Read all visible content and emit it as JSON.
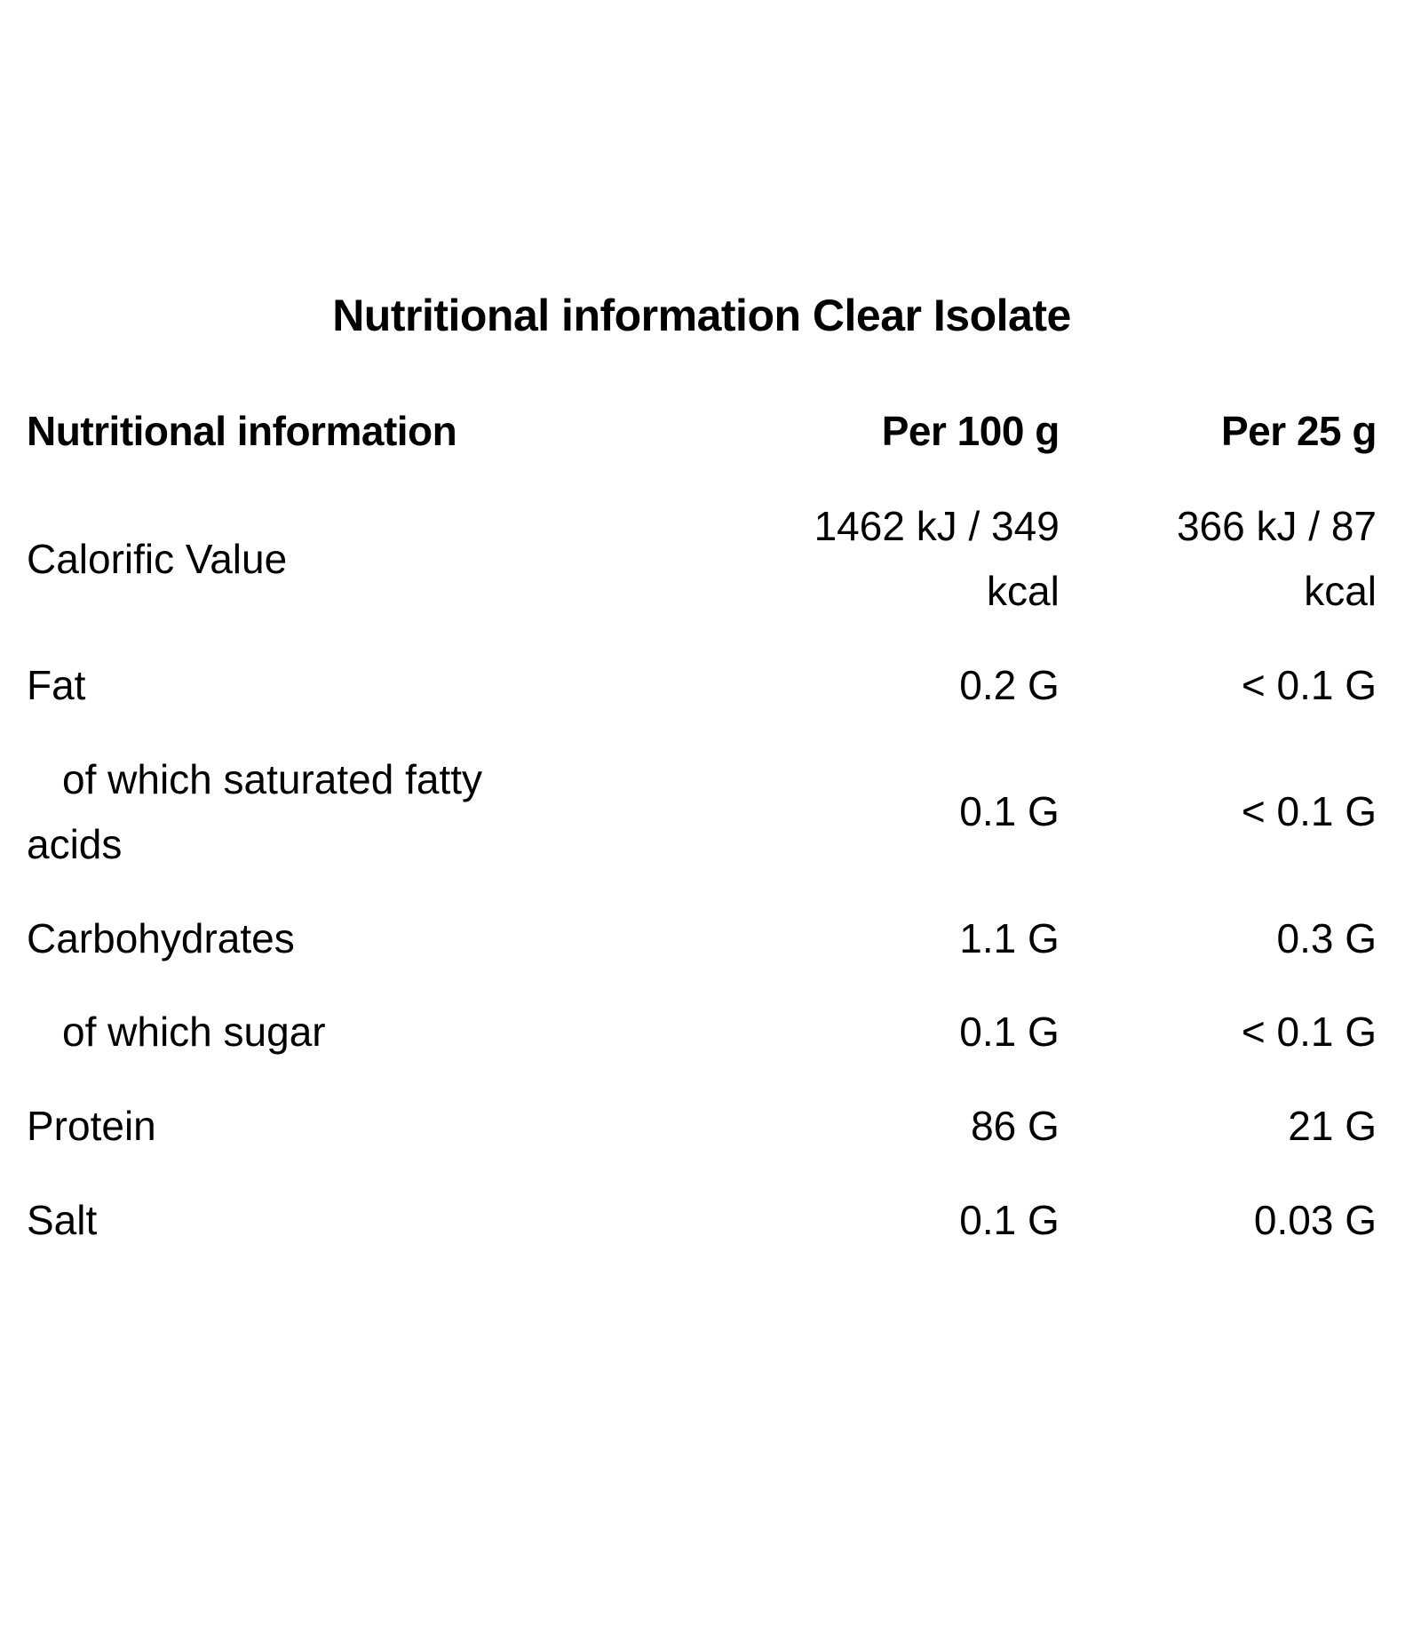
{
  "title": "Nutritional information Clear Isolate",
  "colors": {
    "text": "#000000",
    "background": "#ffffff"
  },
  "table": {
    "headers": {
      "label": "Nutritional information",
      "per_100g": "Per 100 g",
      "per_25g": "Per 25 g"
    },
    "rows": [
      {
        "label": "Calorific Value",
        "per_100g": "1462 kJ / 349\nkcal",
        "per_25g": "366 kJ / 87\nkcal"
      },
      {
        "label": "Fat",
        "per_100g": "0.2 G",
        "per_25g": "< 0.1 G"
      },
      {
        "label": "of which saturated fatty\nacids",
        "per_100g": "0.1 G",
        "per_25g": "< 0.1 G"
      },
      {
        "label": "Carbohydrates",
        "per_100g": "1.1 G",
        "per_25g": "0.3 G"
      },
      {
        "label": "of which sugar",
        "per_100g": "0.1 G",
        "per_25g": "< 0.1 G"
      },
      {
        "label": "Protein",
        "per_100g": "86 G",
        "per_25g": "21 G"
      },
      {
        "label": "Salt",
        "per_100g": "0.1 G",
        "per_25g": "0.03 G"
      }
    ]
  }
}
